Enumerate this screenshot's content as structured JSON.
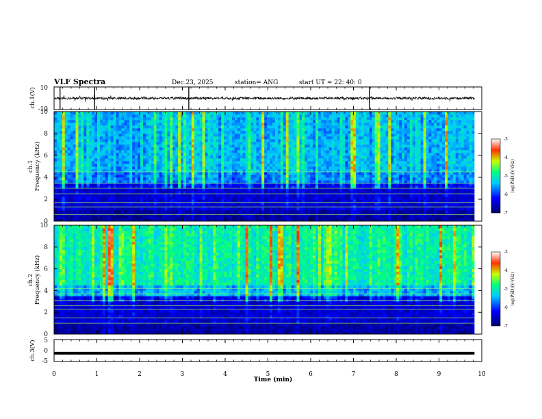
{
  "chart_data": {
    "type": "heatmap",
    "header": {
      "title": "VLF Spectra",
      "date": "Dec.23, 2025",
      "station": "station= ANG",
      "start": "start  UT =   22: 40: 0"
    },
    "xlabel": "Time  (min)",
    "xlim": [
      0,
      10
    ],
    "x_ticks": [
      "0",
      "1",
      "2",
      "3",
      "4",
      "5",
      "6",
      "7",
      "8",
      "9",
      "10"
    ],
    "panels": [
      {
        "id": "ch1-waveform",
        "type": "line",
        "ylabel": "ch.1(V)",
        "ylim": [
          -10,
          10
        ],
        "y_ticks": [
          "10",
          "-10"
        ],
        "baseline": 0,
        "spike_times_min": [
          0.14,
          0.95,
          3.15,
          7.37
        ]
      },
      {
        "id": "ch1-spectrogram",
        "type": "heatmap",
        "ylabel_line1": "ch.1",
        "ylabel_line2": "Frequency  (kHz)",
        "ylim": [
          0,
          10
        ],
        "y_ticks": [
          "0",
          "2",
          "4",
          "6",
          "8",
          "10"
        ],
        "colorbar_label": "log(PSD)(V²/Hz)",
        "colorbar_range": [
          -7,
          -3
        ],
        "colorbar_ticks": [
          "-3",
          "-4",
          "-5",
          "-6",
          "-7"
        ],
        "line_frequencies_khz": [
          0.6,
          1.3,
          1.7,
          2.5,
          3.0,
          3.4,
          4.5
        ]
      },
      {
        "id": "ch2-spectrogram",
        "type": "heatmap",
        "ylabel_line1": "ch.2",
        "ylabel_line2": "Frequency  (kHz)",
        "ylim": [
          0,
          10
        ],
        "y_ticks": [
          "0",
          "2",
          "4",
          "6",
          "8",
          "10"
        ],
        "colorbar_label": "log(PSD)(V²/Hz)",
        "colorbar_range": [
          -7,
          -3
        ],
        "colorbar_ticks": [
          "-3",
          "-4",
          "-5",
          "-6",
          "-7"
        ],
        "line_frequencies_khz": [
          1.0,
          1.5,
          2.3,
          2.6,
          3.1,
          3.7,
          4.2
        ]
      },
      {
        "id": "ch3-waveform",
        "type": "line",
        "ylabel": "ch.3(V)",
        "ylim": [
          -5,
          5
        ],
        "y_ticks": [
          "5",
          "0",
          "-5"
        ],
        "baseline": -1.2
      }
    ]
  }
}
